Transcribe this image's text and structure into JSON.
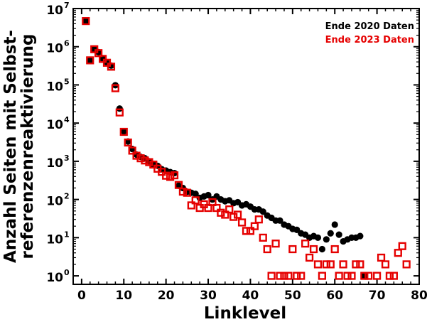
{
  "chart_data": {
    "type": "scatter",
    "xlabel": "Linklevel",
    "ylabel_lines": [
      "Anzahl Seiten mit Selbst-",
      "referenzenreaktivierung"
    ],
    "xlim": [
      -2,
      80
    ],
    "ylim": [
      0.6,
      10000000
    ],
    "yscale": "log",
    "x_ticks": [
      0,
      10,
      20,
      30,
      40,
      50,
      60,
      70,
      80
    ],
    "y_ticks": [
      {
        "value": 1,
        "base": "10",
        "exp": "0"
      },
      {
        "value": 10,
        "base": "10",
        "exp": "1"
      },
      {
        "value": 100,
        "base": "10",
        "exp": "2"
      },
      {
        "value": 1000,
        "base": "10",
        "exp": "3"
      },
      {
        "value": 10000,
        "base": "10",
        "exp": "4"
      },
      {
        "value": 100000,
        "base": "10",
        "exp": "5"
      },
      {
        "value": 1000000,
        "base": "10",
        "exp": "6"
      },
      {
        "value": 10000000,
        "base": "10",
        "exp": "7"
      }
    ],
    "legend_position": "top-right",
    "series": [
      {
        "name": "Ende 2020 Daten",
        "color": "#000000",
        "marker": "filled-circle",
        "points": [
          [
            1,
            4700000
          ],
          [
            2,
            430000
          ],
          [
            3,
            870000
          ],
          [
            4,
            720000
          ],
          [
            5,
            490000
          ],
          [
            6,
            390000
          ],
          [
            7,
            320000
          ],
          [
            8,
            98000
          ],
          [
            9,
            24000
          ],
          [
            10,
            6100
          ],
          [
            11,
            3300
          ],
          [
            12,
            2100
          ],
          [
            13,
            1500
          ],
          [
            14,
            1300
          ],
          [
            15,
            1200
          ],
          [
            16,
            1000
          ],
          [
            17,
            820
          ],
          [
            18,
            760
          ],
          [
            19,
            620
          ],
          [
            20,
            570
          ],
          [
            21,
            520
          ],
          [
            22,
            490
          ],
          [
            23,
            230
          ],
          [
            24,
            200
          ],
          [
            25,
            160
          ],
          [
            26,
            150
          ],
          [
            27,
            140
          ],
          [
            28,
            110
          ],
          [
            29,
            120
          ],
          [
            30,
            130
          ],
          [
            31,
            100
          ],
          [
            32,
            120
          ],
          [
            33,
            100
          ],
          [
            34,
            90
          ],
          [
            35,
            95
          ],
          [
            36,
            80
          ],
          [
            37,
            85
          ],
          [
            38,
            70
          ],
          [
            39,
            75
          ],
          [
            40,
            65
          ],
          [
            41,
            55
          ],
          [
            42,
            55
          ],
          [
            43,
            48
          ],
          [
            44,
            38
          ],
          [
            45,
            33
          ],
          [
            46,
            28
          ],
          [
            47,
            28
          ],
          [
            48,
            22
          ],
          [
            49,
            20
          ],
          [
            50,
            17
          ],
          [
            51,
            16
          ],
          [
            52,
            13
          ],
          [
            53,
            12
          ],
          [
            54,
            10
          ],
          [
            55,
            11
          ],
          [
            56,
            10
          ],
          [
            57,
            5
          ],
          [
            58,
            9
          ],
          [
            59,
            13
          ],
          [
            60,
            22
          ],
          [
            61,
            12
          ],
          [
            62,
            8
          ],
          [
            63,
            9
          ],
          [
            64,
            10
          ],
          [
            65,
            10
          ],
          [
            66,
            11
          ],
          [
            67,
            1
          ]
        ]
      },
      {
        "name": "Ende 2023 Daten",
        "color": "#e50000",
        "marker": "open-square",
        "points": [
          [
            1,
            4700000
          ],
          [
            2,
            440000
          ],
          [
            3,
            860000
          ],
          [
            4,
            680000
          ],
          [
            5,
            480000
          ],
          [
            6,
            380000
          ],
          [
            7,
            300000
          ],
          [
            8,
            82000
          ],
          [
            9,
            19000
          ],
          [
            10,
            5900
          ],
          [
            11,
            3100
          ],
          [
            12,
            1900
          ],
          [
            13,
            1400
          ],
          [
            14,
            1200
          ],
          [
            15,
            1050
          ],
          [
            16,
            950
          ],
          [
            17,
            820
          ],
          [
            18,
            640
          ],
          [
            19,
            530
          ],
          [
            20,
            420
          ],
          [
            21,
            390
          ],
          [
            22,
            430
          ],
          [
            23,
            240
          ],
          [
            24,
            160
          ],
          [
            25,
            150
          ],
          [
            26,
            70
          ],
          [
            27,
            95
          ],
          [
            28,
            60
          ],
          [
            29,
            75
          ],
          [
            30,
            60
          ],
          [
            31,
            85
          ],
          [
            32,
            60
          ],
          [
            33,
            45
          ],
          [
            34,
            40
          ],
          [
            35,
            55
          ],
          [
            36,
            35
          ],
          [
            37,
            40
          ],
          [
            38,
            25
          ],
          [
            39,
            15
          ],
          [
            40,
            15
          ],
          [
            41,
            20
          ],
          [
            42,
            30
          ],
          [
            43,
            10
          ],
          [
            44,
            5
          ],
          [
            45,
            1
          ],
          [
            46,
            7
          ],
          [
            47,
            1
          ],
          [
            48,
            1
          ],
          [
            49,
            1
          ],
          [
            50,
            5
          ],
          [
            51,
            1
          ],
          [
            52,
            1
          ],
          [
            53,
            7
          ],
          [
            54,
            3
          ],
          [
            55,
            5
          ],
          [
            56,
            2
          ],
          [
            57,
            1
          ],
          [
            58,
            2
          ],
          [
            59,
            2
          ],
          [
            60,
            5
          ],
          [
            61,
            1
          ],
          [
            62,
            2
          ],
          [
            63,
            1
          ],
          [
            64,
            1
          ],
          [
            65,
            2
          ],
          [
            66,
            2
          ],
          [
            67,
            1
          ],
          [
            68,
            1
          ],
          [
            70,
            1
          ],
          [
            71,
            3
          ],
          [
            72,
            2
          ],
          [
            73,
            1
          ],
          [
            74,
            1
          ],
          [
            75,
            4
          ],
          [
            76,
            6
          ],
          [
            77,
            2
          ]
        ]
      }
    ]
  }
}
